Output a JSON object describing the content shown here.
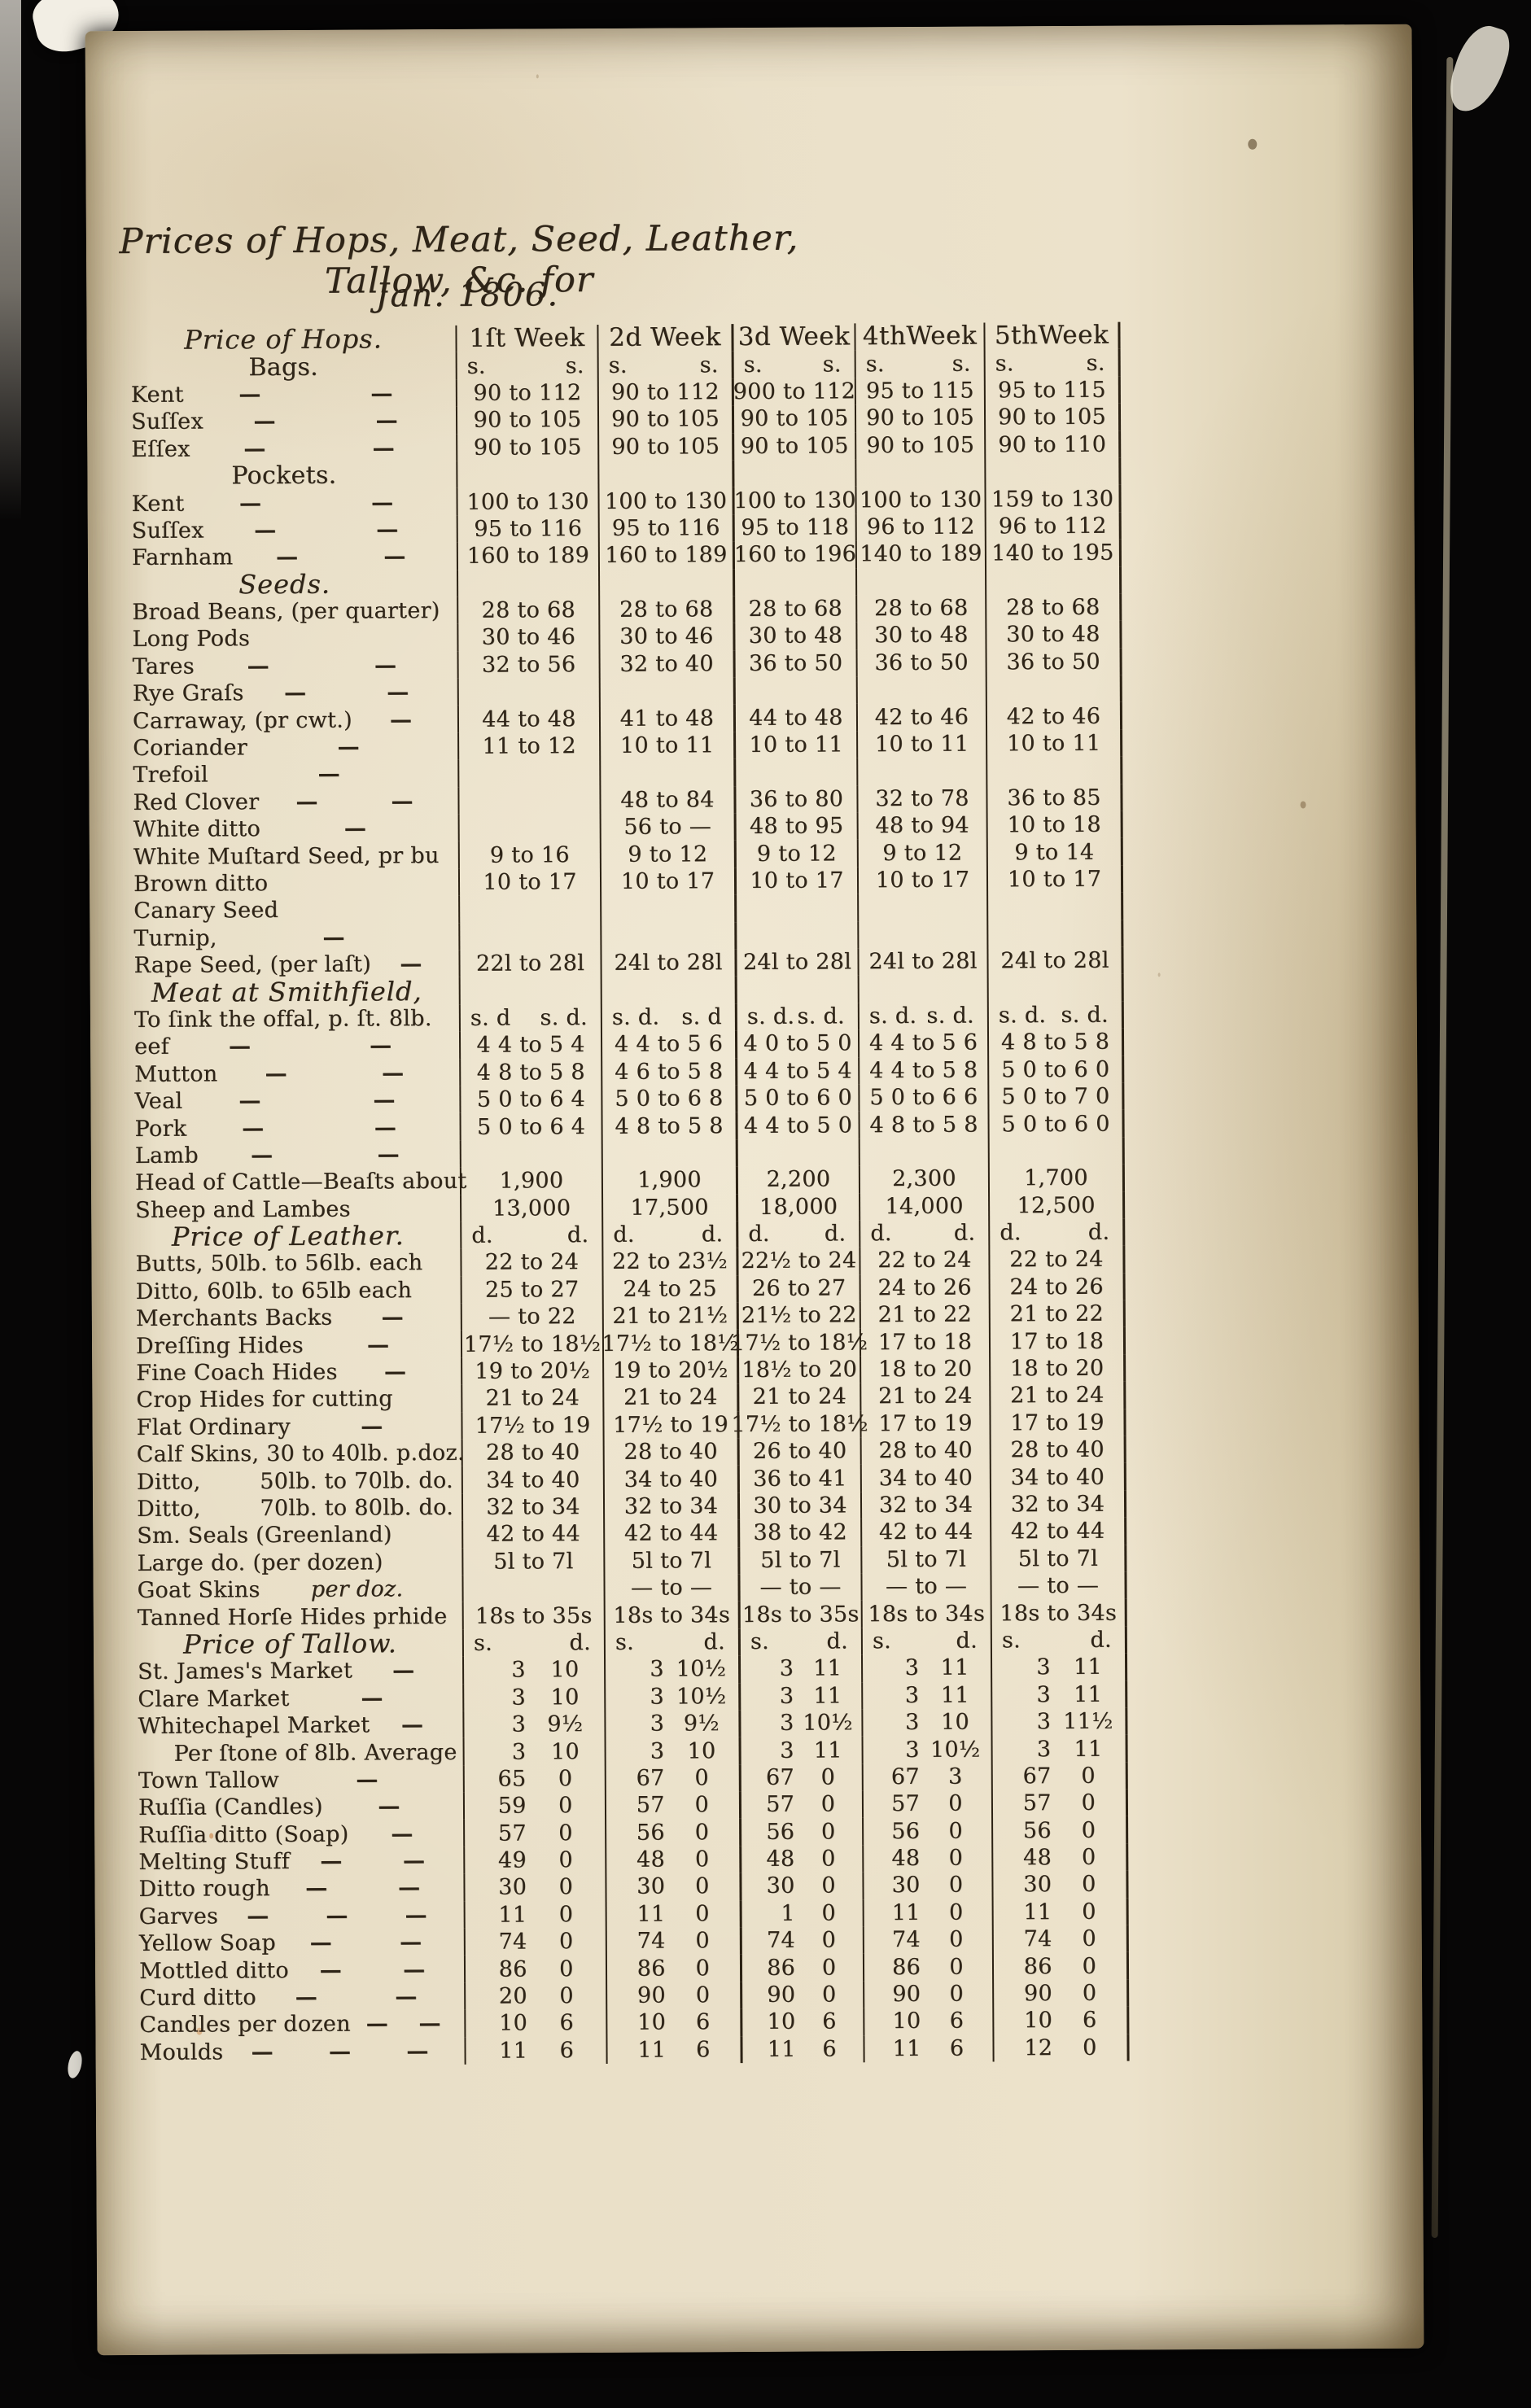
{
  "page": {
    "title": "Prices of Hops, Meat, Seed, Leather, Tallow, &c. for",
    "date_line": "Jan. 1806.",
    "ink_color": "#2e2417",
    "paper_color": "#e6dcc3"
  },
  "table": {
    "corner_title": "Price of Hops.",
    "week_headers": [
      "1ſt Week",
      "2d Week",
      "3d Week",
      "4thWeek",
      "5thWeek"
    ],
    "rows": [
      {
        "l": "Bags.",
        "cls": "ct",
        "k": "u",
        "c": [
          [
            "s.",
            "s."
          ],
          [
            "s.",
            "s."
          ],
          [
            "s.",
            "s."
          ],
          [
            "s.",
            "s."
          ],
          [
            "s.",
            "s."
          ]
        ]
      },
      {
        "l": "Kent",
        "d": 2,
        "k": "c",
        "c": [
          "90 to 112",
          "90 to 112",
          "900 to 112",
          "95 to 115",
          "95 to 115"
        ]
      },
      {
        "l": "Suſſex",
        "d": 2,
        "k": "c",
        "c": [
          "90 to 105",
          "90 to 105",
          "90 to 105",
          "90 to 105",
          "90 to 105"
        ]
      },
      {
        "l": "Eſſex",
        "d": 2,
        "k": "c",
        "c": [
          "90 to 105",
          "90 to 105",
          "90 to 105",
          "90 to 105",
          "90 to 110"
        ]
      },
      {
        "l": "Pockets.",
        "cls": "ct",
        "k": "c",
        "c": [
          "",
          "",
          "",
          "",
          ""
        ]
      },
      {
        "l": "Kent",
        "d": 2,
        "k": "c",
        "c": [
          "100 to 130",
          "100 to 130",
          "100 to 130",
          "100 to 130",
          "159 to 130"
        ]
      },
      {
        "l": "Suſſex",
        "d": 2,
        "k": "c",
        "c": [
          "95 to 116",
          "95 to 116",
          "95 to 118",
          "96 to 112",
          "96 to 112"
        ]
      },
      {
        "l": "Farnham",
        "d": 2,
        "k": "c",
        "c": [
          "160 to 189",
          "160 to 189",
          "160 to 196",
          "140 to 189",
          "140 to 195"
        ]
      },
      {
        "l": "Seeds.",
        "cls": "ct it",
        "k": "c",
        "c": [
          "",
          "",
          "",
          "",
          ""
        ]
      },
      {
        "l": "Broad Beans, (per quarter)",
        "k": "c",
        "c": [
          "28 to 68",
          "28 to 68",
          "28 to 68",
          "28 to 68",
          "28 to 68"
        ]
      },
      {
        "l": "Long Pods",
        "k": "c",
        "c": [
          "30 to 46",
          "30 to 46",
          "30 to 48",
          "30 to 48",
          "30 to 48"
        ]
      },
      {
        "l": "Tares",
        "d": 2,
        "k": "c",
        "c": [
          "32 to 56",
          "32 to 40",
          "36 to 50",
          "36 to 50",
          "36 to 50"
        ]
      },
      {
        "l": "Rye Graſs",
        "d": 2,
        "k": "c",
        "c": [
          "",
          "",
          "",
          "",
          ""
        ]
      },
      {
        "l": "Carraway, (pr cwt.)",
        "d": 1,
        "k": "c",
        "c": [
          "44 to 48",
          "41 to 48",
          "44 to 48",
          "42 to 46",
          "42 to 46"
        ]
      },
      {
        "l": "Coriander",
        "d": 1,
        "k": "c",
        "c": [
          "11 to 12",
          "10 to 11",
          "10 to 11",
          "10 to 11",
          "10 to 11"
        ]
      },
      {
        "l": "Trefoil",
        "d": 1,
        "k": "c",
        "c": [
          "",
          "",
          "",
          "",
          ""
        ]
      },
      {
        "l": "Red Clover",
        "d": 2,
        "k": "c",
        "c": [
          "",
          "48 to 84",
          "36 to 80",
          "32 to 78",
          "36 to 85"
        ]
      },
      {
        "l": "White ditto",
        "d": 1,
        "k": "c",
        "c": [
          "",
          "56 to —",
          "48 to 95",
          "48 to 94",
          "10 to 18"
        ]
      },
      {
        "l": "White Muſtard Seed, pr bu",
        "k": "c",
        "c": [
          "9 to 16",
          "9 to 12",
          "9 to 12",
          "9 to 12",
          "9 to 14"
        ]
      },
      {
        "l": "Brown ditto",
        "k": "c",
        "c": [
          "10 to 17",
          "10 to 17",
          "10 to 17",
          "10 to 17",
          "10 to 17"
        ]
      },
      {
        "l": "Canary Seed",
        "k": "c",
        "c": [
          "",
          "",
          "",
          "",
          ""
        ]
      },
      {
        "l": "Turnip,",
        "d": 1,
        "k": "c",
        "c": [
          "",
          "",
          "",
          "",
          ""
        ]
      },
      {
        "l": "Rape Seed, (per laſt)",
        "d": 1,
        "k": "c",
        "c": [
          "22l to 28l",
          "24l to 28l",
          "24l to 28l",
          "24l to 28l",
          "24l to 28l"
        ]
      },
      {
        "l": "Meat at Smithfield,",
        "cls": "ct it",
        "k": "c",
        "c": [
          "",
          "",
          "",
          "",
          ""
        ]
      },
      {
        "l": "To ſink the offal, p. ſt. 8lb.",
        "k": "u",
        "c": [
          [
            "s. d",
            "s. d."
          ],
          [
            "s. d.",
            "s. d"
          ],
          [
            "s. d.",
            "s. d."
          ],
          [
            "s. d.",
            "s. d."
          ],
          [
            "s. d.",
            "s. d."
          ]
        ]
      },
      {
        "l": "eef",
        "d": 2,
        "k": "c",
        "c": [
          "4 4 to 5 4",
          "4 4 to 5 6",
          "4 0 to 5 0",
          "4 4 to 5 6",
          "4 8 to 5 8"
        ]
      },
      {
        "l": "Mutton",
        "d": 2,
        "k": "c",
        "c": [
          "4 8 to 5 8",
          "4 6 to 5 8",
          "4 4 to 5 4",
          "4 4 to 5 8",
          "5 0 to 6 0"
        ]
      },
      {
        "l": "Veal",
        "d": 2,
        "k": "c",
        "c": [
          "5 0 to 6 4",
          "5 0 to 6 8",
          "5 0 to 6 0",
          "5 0 to 6 6",
          "5 0 to 7 0"
        ]
      },
      {
        "l": "Pork",
        "d": 2,
        "k": "c",
        "c": [
          "5 0 to 6 4",
          "4 8 to 5 8",
          "4 4 to 5 0",
          "4 8 to 5 8",
          "5 0 to 6 0"
        ]
      },
      {
        "l": "Lamb",
        "d": 2,
        "k": "c",
        "c": [
          "",
          "",
          "",
          "",
          ""
        ]
      },
      {
        "l": "Head of Cattle—Beaſts about",
        "k": "c",
        "c": [
          "1,900",
          "1,900",
          "2,200",
          "2,300",
          "1,700"
        ]
      },
      {
        "l": "Sheep and Lambes",
        "k": "c",
        "c": [
          "13,000",
          "17,500",
          "18,000",
          "14,000",
          "12,500"
        ]
      },
      {
        "l": "Price of Leather.",
        "cls": "ct it",
        "k": "u",
        "c": [
          [
            "d.",
            "d."
          ],
          [
            "d.",
            "d."
          ],
          [
            "d.",
            "d."
          ],
          [
            "d.",
            "d."
          ],
          [
            "d.",
            "d."
          ]
        ]
      },
      {
        "l": "Butts, 50lb. to 56lb. each",
        "k": "c",
        "c": [
          "22 to 24",
          "22 to 23½",
          "22½ to 24",
          "22 to 24",
          "22 to 24"
        ]
      },
      {
        "l": "Ditto, 60lb. to 65lb each",
        "k": "c",
        "c": [
          "25 to 27",
          "24 to 25",
          "26 to 27",
          "24 to 26",
          "24 to 26"
        ]
      },
      {
        "l": "Merchants Backs",
        "d": 1,
        "k": "c",
        "c": [
          "— to 22",
          "21 to 21½",
          "21½ to 22",
          "21 to 22",
          "21 to 22"
        ]
      },
      {
        "l": "Dreſſing Hides",
        "d": 1,
        "k": "c",
        "c": [
          "17½ to 18½",
          "17½ to 18½",
          "17½ to 18½",
          "17 to 18",
          "17 to 18"
        ]
      },
      {
        "l": "Fine Coach Hides",
        "d": 1,
        "k": "c",
        "c": [
          "19 to 20½",
          "19 to 20½",
          "18½ to 20",
          "18 to 20",
          "18 to 20"
        ]
      },
      {
        "l": "Crop Hides for cutting",
        "k": "c",
        "c": [
          "21 to 24",
          "21 to 24",
          "21 to 24",
          "21 to 24",
          "21 to 24"
        ]
      },
      {
        "l": "Flat Ordinary",
        "d": 1,
        "k": "c",
        "c": [
          "17½ to 19",
          "17½ to 19",
          "17½ to 18½",
          "17 to 19",
          "17 to 19"
        ]
      },
      {
        "l": "Calf Skins, 30 to 40lb. p.doz.",
        "k": "c",
        "c": [
          "28 to 40",
          "28 to 40",
          "26 to 40",
          "28 to 40",
          "28 to 40"
        ]
      },
      {
        "l": "Ditto,",
        "l2": "50lb. to 70lb. do.",
        "l2pos": "end",
        "k": "c",
        "c": [
          "34 to 40",
          "34 to 40",
          "36 to 41",
          "34 to 40",
          "34 to 40"
        ]
      },
      {
        "l": "Ditto,",
        "l2": "70lb. to 80lb. do.",
        "l2pos": "end",
        "k": "c",
        "c": [
          "32 to 34",
          "32 to 34",
          "30 to 34",
          "32 to 34",
          "32 to 34"
        ]
      },
      {
        "l": "Sm. Seals (Greenland)",
        "k": "c",
        "c": [
          "42 to 44",
          "42 to 44",
          "38 to 42",
          "42 to 44",
          "42 to 44"
        ]
      },
      {
        "l": "Large do. (per dozen)",
        "k": "c",
        "c": [
          "5l to 7l",
          "5l to 7l",
          "5l to 7l",
          "5l to 7l",
          "5l to 7l"
        ]
      },
      {
        "l": "Goat Skins",
        "l2": "per doz.",
        "l2pos": "mid",
        "k": "c",
        "c": [
          "",
          "— to —",
          "— to —",
          "— to —",
          "— to —"
        ]
      },
      {
        "l": "Tanned Horſe Hides prhide",
        "k": "c",
        "c": [
          "18s to 35s",
          "18s to 34s",
          "18s to 35s",
          "18s to 34s",
          "18s to 34s"
        ]
      },
      {
        "l": "Price of Tallow.",
        "cls": "ct it",
        "k": "u",
        "c": [
          [
            "s.",
            "d."
          ],
          [
            "s.",
            "d."
          ],
          [
            "s.",
            "d."
          ],
          [
            "s.",
            "d."
          ],
          [
            "s.",
            "d."
          ]
        ]
      },
      {
        "l": "St. James's Market",
        "d": 1,
        "k": "sd",
        "c": [
          "3 10",
          "3 10½",
          "3 11",
          "3 11",
          "3 11"
        ]
      },
      {
        "l": "Clare Market",
        "d": 1,
        "k": "sd",
        "c": [
          "3 10",
          "3 10½",
          "3 11",
          "3 11",
          "3 11"
        ]
      },
      {
        "l": "Whitechapel Market",
        "d": 1,
        "k": "sd",
        "c": [
          "3 9½",
          "3 9½",
          "3 10½",
          "3 10",
          "3 11½"
        ]
      },
      {
        "l": "Per ſtone of 8lb. Average",
        "cls": "ind",
        "k": "sd",
        "c": [
          "3 10",
          "3 10",
          "3 11",
          "3 10½",
          "3 11"
        ]
      },
      {
        "l": "Town Tallow",
        "d": 1,
        "k": "sd",
        "c": [
          "65 0",
          "67 0",
          "67 0",
          "67 3",
          "67 0"
        ]
      },
      {
        "l": "Ruſſia (Candles)",
        "d": 1,
        "k": "sd",
        "c": [
          "59 0",
          "57 0",
          "57 0",
          "57 0",
          "57 0"
        ]
      },
      {
        "l": "Ruſſia ditto (Soap)",
        "d": 1,
        "k": "sd",
        "c": [
          "57 0",
          "56 0",
          "56 0",
          "56 0",
          "56 0"
        ]
      },
      {
        "l": "Melting Stuff",
        "d": 2,
        "k": "sd",
        "c": [
          "49 0",
          "48 0",
          "48 0",
          "48 0",
          "48 0"
        ]
      },
      {
        "l": "Ditto rough",
        "d": 2,
        "k": "sd",
        "c": [
          "30 0",
          "30 0",
          "30 0",
          "30 0",
          "30 0"
        ]
      },
      {
        "l": "Garves",
        "d": 3,
        "k": "sd",
        "c": [
          "11 0",
          "11 0",
          "1 0",
          "11 0",
          "11 0"
        ]
      },
      {
        "l": "Yellow Soap",
        "d": 2,
        "k": "sd",
        "c": [
          "74 0",
          "74 0",
          "74 0",
          "74 0",
          "74 0"
        ]
      },
      {
        "l": "Mottled ditto",
        "d": 2,
        "k": "sd",
        "c": [
          "86 0",
          "86 0",
          "86 0",
          "86 0",
          "86 0"
        ]
      },
      {
        "l": "Curd ditto",
        "d": 2,
        "k": "sd",
        "c": [
          "20 0",
          "90 0",
          "90 0",
          "90 0",
          "90 0"
        ]
      },
      {
        "l": "Candles per dozen",
        "d": 2,
        "k": "sd",
        "c": [
          "10 6",
          "10 6",
          "10 6",
          "10 6",
          "10 6"
        ]
      },
      {
        "l": "Moulds",
        "d": 3,
        "k": "sd",
        "c": [
          "11 6",
          "11 6",
          "11 6",
          "11 6",
          "12 0"
        ]
      }
    ]
  }
}
